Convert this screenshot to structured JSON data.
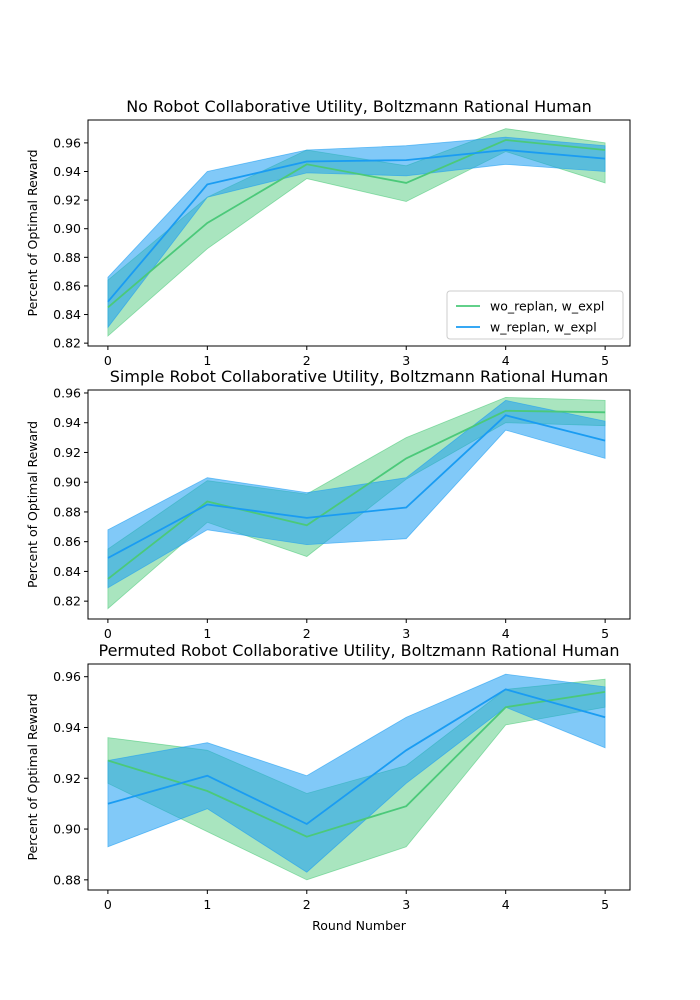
{
  "colors": {
    "green": "#4bc97a",
    "blue": "#1a9cf2",
    "green_fill": "#4bc97a",
    "blue_fill": "#1a9cf2"
  },
  "legend": {
    "placement": "lower-right of first panel",
    "entries": [
      "wo_replan, w_expl",
      "w_replan, w_expl"
    ]
  },
  "chart_data": [
    {
      "type": "line",
      "title": "No Robot Collaborative Utility, Boltzmann Rational Human",
      "ylabel": "Percent of Optimal Reward",
      "xlabel": "",
      "x": [
        0,
        1,
        2,
        3,
        4,
        5
      ],
      "xticks": [
        "0",
        "1",
        "2",
        "3",
        "4",
        "5"
      ],
      "xlim": [
        -0.2,
        5.25
      ],
      "ylim": [
        0.818,
        0.976
      ],
      "yticks": [
        "0.82",
        "0.84",
        "0.86",
        "0.88",
        "0.90",
        "0.92",
        "0.94",
        "0.96"
      ],
      "ytick_values": [
        0.82,
        0.84,
        0.86,
        0.88,
        0.9,
        0.92,
        0.94,
        0.96
      ],
      "legend": true,
      "series": [
        {
          "name": "wo_replan, w_expl",
          "color": "green",
          "values": [
            0.845,
            0.904,
            0.945,
            0.932,
            0.962,
            0.955
          ],
          "lower": [
            0.825,
            0.886,
            0.935,
            0.919,
            0.954,
            0.932
          ],
          "upper": [
            0.864,
            0.922,
            0.955,
            0.944,
            0.97,
            0.96
          ]
        },
        {
          "name": "w_replan, w_expl",
          "color": "blue",
          "values": [
            0.849,
            0.931,
            0.947,
            0.948,
            0.955,
            0.949
          ],
          "lower": [
            0.831,
            0.922,
            0.939,
            0.937,
            0.945,
            0.94
          ],
          "upper": [
            0.866,
            0.94,
            0.955,
            0.958,
            0.964,
            0.958
          ]
        }
      ]
    },
    {
      "type": "line",
      "title": "Simple Robot Collaborative Utility, Boltzmann Rational Human",
      "ylabel": "Percent of Optimal Reward",
      "xlabel": "",
      "x": [
        0,
        1,
        2,
        3,
        4,
        5
      ],
      "xticks": [
        "0",
        "1",
        "2",
        "3",
        "4",
        "5"
      ],
      "xlim": [
        -0.2,
        5.25
      ],
      "ylim": [
        0.808,
        0.962
      ],
      "yticks": [
        "0.82",
        "0.84",
        "0.86",
        "0.88",
        "0.90",
        "0.92",
        "0.94",
        "0.96"
      ],
      "ytick_values": [
        0.82,
        0.84,
        0.86,
        0.88,
        0.9,
        0.92,
        0.94,
        0.96
      ],
      "legend": false,
      "series": [
        {
          "name": "wo_replan, w_expl",
          "color": "green",
          "values": [
            0.835,
            0.887,
            0.871,
            0.916,
            0.948,
            0.947
          ],
          "lower": [
            0.815,
            0.873,
            0.85,
            0.902,
            0.94,
            0.938
          ],
          "upper": [
            0.855,
            0.901,
            0.892,
            0.93,
            0.957,
            0.955
          ]
        },
        {
          "name": "w_replan, w_expl",
          "color": "blue",
          "values": [
            0.849,
            0.885,
            0.876,
            0.883,
            0.945,
            0.928
          ],
          "lower": [
            0.829,
            0.868,
            0.858,
            0.862,
            0.935,
            0.916
          ],
          "upper": [
            0.868,
            0.903,
            0.893,
            0.903,
            0.955,
            0.941
          ]
        }
      ]
    },
    {
      "type": "line",
      "title": "Permuted Robot Collaborative Utility, Boltzmann Rational Human",
      "ylabel": "Percent of Optimal Reward",
      "xlabel": "Round Number",
      "x": [
        0,
        1,
        2,
        3,
        4,
        5
      ],
      "xticks": [
        "0",
        "1",
        "2",
        "3",
        "4",
        "5"
      ],
      "xlim": [
        -0.2,
        5.25
      ],
      "ylim": [
        0.876,
        0.965
      ],
      "yticks": [
        "0.88",
        "0.90",
        "0.92",
        "0.94",
        "0.96"
      ],
      "ytick_values": [
        0.88,
        0.9,
        0.92,
        0.94,
        0.96
      ],
      "legend": false,
      "series": [
        {
          "name": "wo_replan, w_expl",
          "color": "green",
          "values": [
            0.927,
            0.915,
            0.897,
            0.909,
            0.948,
            0.954
          ],
          "lower": [
            0.918,
            0.899,
            0.88,
            0.893,
            0.941,
            0.948
          ],
          "upper": [
            0.936,
            0.931,
            0.914,
            0.925,
            0.955,
            0.959
          ]
        },
        {
          "name": "w_replan, w_expl",
          "color": "blue",
          "values": [
            0.91,
            0.921,
            0.902,
            0.931,
            0.955,
            0.944
          ],
          "lower": [
            0.893,
            0.908,
            0.883,
            0.918,
            0.948,
            0.932
          ],
          "upper": [
            0.927,
            0.934,
            0.921,
            0.944,
            0.961,
            0.956
          ]
        }
      ]
    }
  ]
}
